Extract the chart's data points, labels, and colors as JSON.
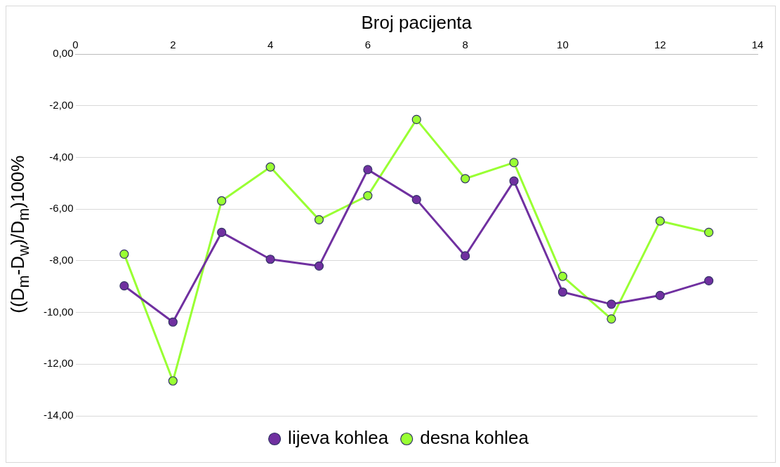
{
  "chart_data": {
    "type": "line",
    "xlabel": "Broj pacijenta",
    "ylabel": "((D$_{m}$-D$_{w}$)/D$_{m}$)100%",
    "x": [
      1,
      2,
      3,
      4,
      5,
      6,
      7,
      8,
      9,
      10,
      11,
      12,
      13
    ],
    "xlim": [
      0,
      14
    ],
    "xticks": [
      0,
      2,
      4,
      6,
      8,
      10,
      12,
      14
    ],
    "ylim": [
      -14,
      0
    ],
    "yticks": [
      {
        "value": -14,
        "label": "-14,00"
      },
      {
        "value": -12,
        "label": "-12,00"
      },
      {
        "value": -10,
        "label": "-10,00"
      },
      {
        "value": -8,
        "label": "-8,00"
      },
      {
        "value": -6,
        "label": "-6,00"
      },
      {
        "value": -4,
        "label": "-4,00"
      },
      {
        "value": -2,
        "label": "-2,00"
      },
      {
        "value": 0,
        "label": "0,00"
      }
    ],
    "grid": "y",
    "legend": "bottom",
    "marker": "circle",
    "line_style": "solid",
    "series": [
      {
        "name": "lijeva kohlea",
        "color": "#7030a0",
        "values": [
          -8.97,
          -10.37,
          -6.9,
          -7.94,
          -8.2,
          -4.47,
          -5.63,
          -7.81,
          -4.91,
          -9.21,
          -9.68,
          -9.34,
          -8.77
        ]
      },
      {
        "name": "desna kohlea",
        "color": "#99ff33",
        "values": [
          -7.74,
          -12.65,
          -5.68,
          -4.37,
          -6.41,
          -5.48,
          -2.53,
          -4.82,
          -4.2,
          -8.6,
          -10.25,
          -6.46,
          -6.9
        ]
      }
    ]
  }
}
